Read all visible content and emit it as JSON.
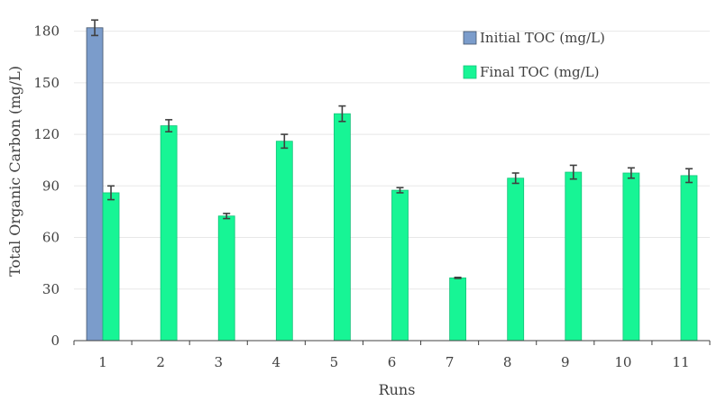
{
  "chart_data": {
    "type": "bar",
    "xlabel": "Runs",
    "ylabel": "Total Organic Carbon (mg/L)",
    "ylim": [
      0,
      195
    ],
    "yticks": [
      0,
      30,
      60,
      90,
      120,
      150,
      180
    ],
    "grid": "horizontal",
    "legend_position": "top-right",
    "categories": [
      "1",
      "2",
      "3",
      "4",
      "5",
      "6",
      "7",
      "8",
      "9",
      "10",
      "11"
    ],
    "series": [
      {
        "name": "Initial TOC (mg/L)",
        "color": "#7B9CCB",
        "values": [
          182,
          null,
          null,
          null,
          null,
          null,
          null,
          null,
          null,
          null,
          null
        ],
        "errors": [
          4.5,
          null,
          null,
          null,
          null,
          null,
          null,
          null,
          null,
          null,
          null
        ]
      },
      {
        "name": "Final TOC (mg/L)",
        "color": "#17F595",
        "values": [
          86,
          125,
          72.5,
          116,
          132,
          87.5,
          36.5,
          94.5,
          98,
          97.5,
          96
        ],
        "errors": [
          4,
          3.5,
          1.5,
          4,
          4.5,
          1.5,
          0.3,
          3,
          4,
          3,
          4
        ]
      }
    ]
  }
}
